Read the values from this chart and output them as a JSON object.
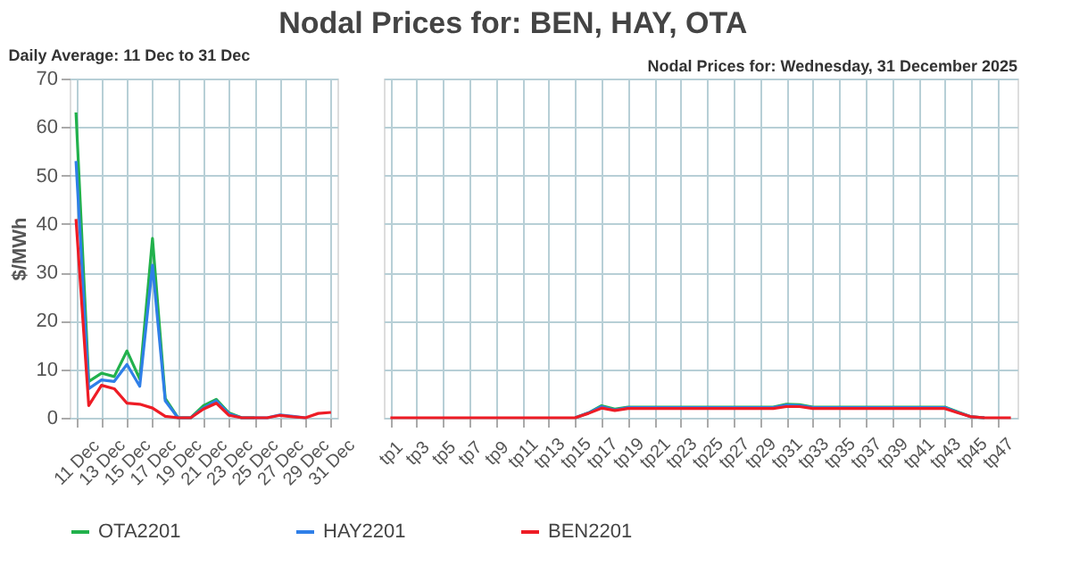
{
  "chart_data": [
    {
      "type": "line",
      "title": "Nodal Prices for: BEN, HAY, OTA",
      "subtitle": "Daily Average: 11 Dec to 31 Dec",
      "ylabel": "$/MWh",
      "ylim": [
        0,
        70
      ],
      "yticks": [
        0,
        10,
        20,
        30,
        40,
        50,
        60,
        70
      ],
      "grid": true,
      "legend": "bottom",
      "categories": [
        "11 Dec",
        null,
        "13 Dec",
        null,
        "15 Dec",
        null,
        "17 Dec",
        null,
        "19 Dec",
        null,
        "21 Dec",
        null,
        "23 Dec",
        null,
        "25 Dec",
        null,
        "27 Dec",
        null,
        "29 Dec",
        null,
        "31 Dec"
      ],
      "series": [
        {
          "name": "OTA2201",
          "color": "#22b14c",
          "values": [
            63,
            7.5,
            9.2,
            8.5,
            13.8,
            8,
            37,
            4,
            0,
            0,
            2.5,
            3.8,
            1,
            0,
            0,
            null,
            null,
            null,
            null,
            null,
            null
          ]
        },
        {
          "name": "HAY2201",
          "color": "#2f7fe8",
          "values": [
            53,
            6,
            7.8,
            7.5,
            11,
            6.5,
            31.5,
            3.5,
            0,
            0,
            2,
            3.5,
            0.8,
            0,
            0,
            0,
            0.6,
            0.3,
            0,
            null,
            null
          ]
        },
        {
          "name": "BEN2201",
          "color": "#ee1c25",
          "values": [
            41,
            2.5,
            6.7,
            6,
            3,
            2.8,
            2,
            0.3,
            0,
            0,
            1.8,
            3,
            0.5,
            0,
            0,
            0,
            0.5,
            0.2,
            0,
            0.9,
            1.1
          ]
        }
      ]
    },
    {
      "type": "line",
      "title": "Nodal Prices for: Wednesday, 31 December 2025",
      "ylim": [
        0,
        70
      ],
      "yticks": [
        0,
        10,
        20,
        30,
        40,
        50,
        60,
        70
      ],
      "grid": true,
      "legend": "bottom",
      "tick_labels": "x",
      "categories": [
        "tp1",
        null,
        "tp3",
        null,
        "tp5",
        null,
        "tp7",
        null,
        "tp9",
        null,
        "tp11",
        null,
        "tp13",
        null,
        "tp15",
        null,
        "tp17",
        null,
        "tp19",
        null,
        "tp21",
        null,
        "tp23",
        null,
        "tp25",
        null,
        "tp27",
        null,
        "tp29",
        null,
        "tp31",
        null,
        "tp33",
        null,
        "tp35",
        null,
        "tp37",
        null,
        "tp39",
        null,
        "tp41",
        null,
        "tp43",
        null,
        "tp45",
        null,
        "tp47",
        null
      ],
      "series": [
        {
          "name": "OTA2201",
          "color": "#22b14c",
          "values": [
            null,
            null,
            null,
            null,
            null,
            null,
            null,
            null,
            null,
            null,
            null,
            null,
            null,
            null,
            0,
            1.0,
            2.5,
            1.8,
            2.2,
            2.2,
            2.2,
            2.2,
            2.2,
            2.2,
            2.2,
            2.2,
            2.2,
            2.2,
            2.2,
            2.2,
            2.8,
            2.7,
            2.2,
            2.2,
            2.2,
            2.2,
            2.2,
            2.2,
            2.2,
            2.2,
            2.2,
            2.2,
            2.2,
            1.2,
            0.2,
            0,
            null,
            null
          ]
        },
        {
          "name": "HAY2201",
          "color": "#2f7fe8",
          "values": [
            null,
            null,
            null,
            null,
            null,
            null,
            null,
            null,
            null,
            null,
            null,
            null,
            null,
            null,
            0,
            1.0,
            2.3,
            1.6,
            2.1,
            2.1,
            2.1,
            2.1,
            2.1,
            2.1,
            2.1,
            2.1,
            2.1,
            2.1,
            2.1,
            2.1,
            2.6,
            2.5,
            2.1,
            2.1,
            2.1,
            2.1,
            2.1,
            2.1,
            2.1,
            2.1,
            2.1,
            2.1,
            2.1,
            1.1,
            0.2,
            0,
            null,
            null
          ]
        },
        {
          "name": "BEN2201",
          "color": "#ee1c25",
          "values": [
            0,
            0,
            0,
            0,
            0,
            0,
            0,
            0,
            0,
            0,
            0,
            0,
            0,
            0,
            0,
            0.9,
            2.0,
            1.5,
            1.9,
            1.9,
            1.9,
            1.9,
            1.9,
            1.9,
            1.9,
            1.9,
            1.9,
            1.9,
            1.9,
            1.9,
            2.3,
            2.3,
            1.9,
            1.9,
            1.9,
            1.9,
            1.9,
            1.9,
            1.9,
            1.9,
            1.9,
            1.9,
            1.9,
            1.0,
            0.2,
            0,
            0,
            0
          ]
        }
      ]
    }
  ]
}
